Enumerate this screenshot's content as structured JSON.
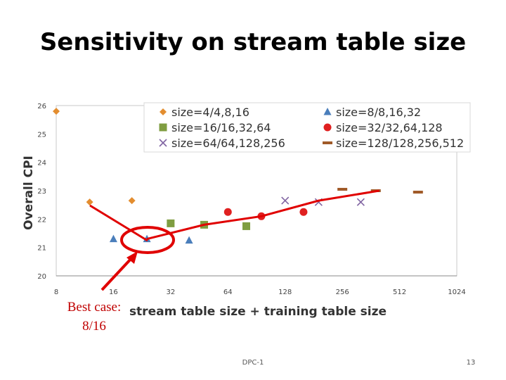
{
  "slide": {
    "title": "Sensitivity on stream table size",
    "footer_center": "DPC-1",
    "page_number": "13"
  },
  "callout": {
    "line1": "Best case:",
    "line2": "8/16",
    "color": "#e00000"
  },
  "chart_data": {
    "type": "scatter",
    "title": "",
    "xlabel": "stream table size + training table size",
    "ylabel": "Overall CPI",
    "x_scale": "log2",
    "xlim": [
      8,
      1024
    ],
    "ylim": [
      20,
      26
    ],
    "x_ticks": [
      8,
      16,
      32,
      64,
      128,
      256,
      512,
      1024
    ],
    "x_tick_labels": [
      "8",
      "16",
      "32",
      "64",
      "128",
      "256",
      "512",
      "1024"
    ],
    "y_ticks": [
      20,
      21,
      22,
      23,
      24,
      25,
      26
    ],
    "y_tick_labels": [
      "20",
      "21",
      "22",
      "23",
      "24",
      "25",
      "26"
    ],
    "legend_position": "top-right",
    "series": [
      {
        "name": "size=4/4,8,16",
        "marker": "diamond",
        "color": "#e38d2f",
        "x": [
          8,
          12,
          20
        ],
        "y": [
          25.8,
          22.6,
          22.65
        ]
      },
      {
        "name": "size=8/8,16,32",
        "marker": "triangle",
        "color": "#4a7ebb",
        "x": [
          16,
          24,
          40
        ],
        "y": [
          21.3,
          21.3,
          21.25
        ]
      },
      {
        "name": "size=16/16,32,64",
        "marker": "square",
        "color": "#7f9d41",
        "x": [
          32,
          48,
          80
        ],
        "y": [
          21.85,
          21.8,
          21.75
        ]
      },
      {
        "name": "size=32/32,64,128",
        "marker": "circle",
        "color": "#e02020",
        "x": [
          64,
          96,
          160
        ],
        "y": [
          22.25,
          22.1,
          22.25
        ]
      },
      {
        "name": "size=64/64,128,256",
        "marker": "x",
        "color": "#8064a2",
        "x": [
          128,
          192,
          320
        ],
        "y": [
          22.65,
          22.6,
          22.6
        ]
      },
      {
        "name": "size=128/128,256,512",
        "marker": "dash",
        "color": "#a05a28",
        "x": [
          256,
          384,
          640
        ],
        "y": [
          23.05,
          23.0,
          22.95
        ]
      }
    ],
    "annotation_line": {
      "color": "#e00000",
      "x": [
        24,
        48,
        96,
        192,
        400
      ],
      "y": [
        21.3,
        21.8,
        22.1,
        22.65,
        23.0
      ]
    },
    "highlight": {
      "x": 24,
      "y": 21.3
    }
  }
}
